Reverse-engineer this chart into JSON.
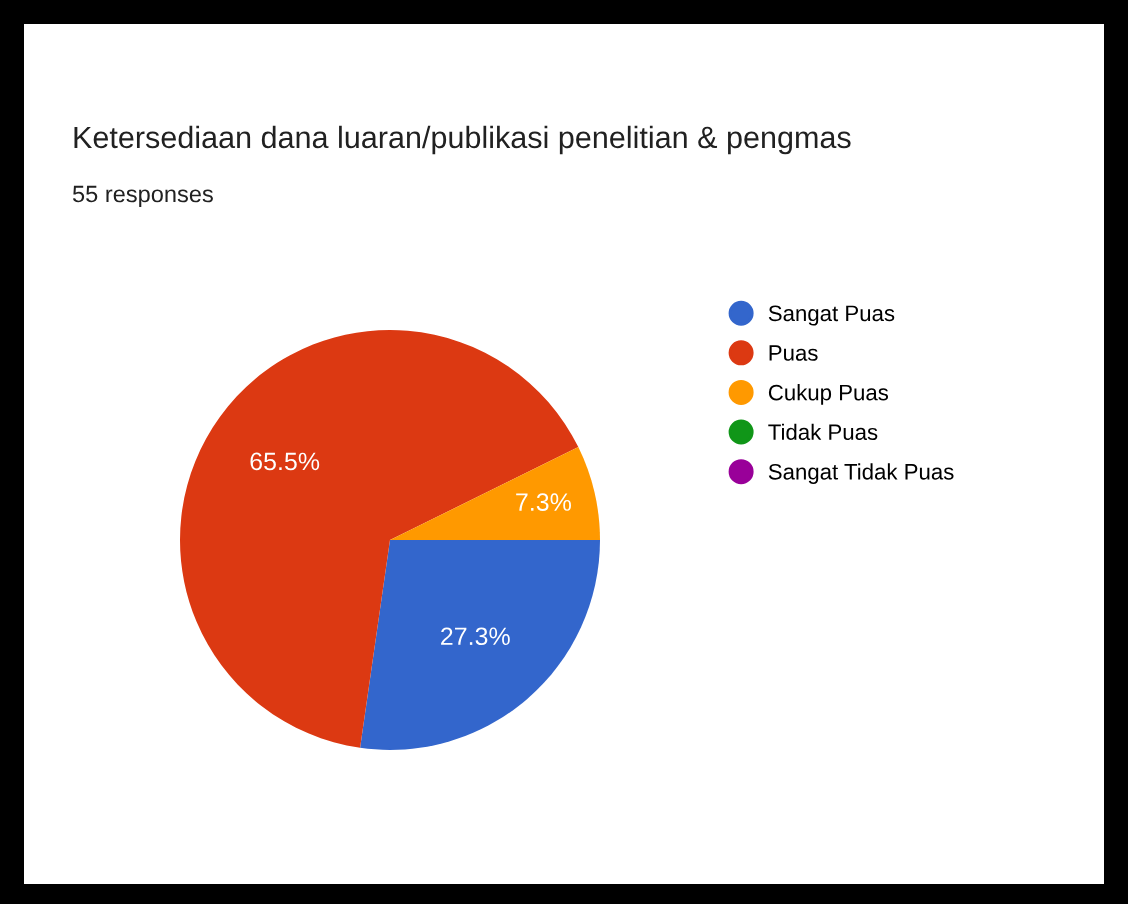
{
  "chart_data": {
    "type": "pie",
    "title": "Ketersediaan dana luaran/publikasi penelitian & pengmas",
    "subtitle": "55 responses",
    "categories": [
      "Sangat Puas",
      "Puas",
      "Cukup Puas",
      "Tidak Puas",
      "Sangat Tidak Puas"
    ],
    "values": [
      27.3,
      65.5,
      7.3,
      0,
      0
    ],
    "value_labels": [
      "27.3%",
      "65.5%",
      "7.3%",
      null,
      null
    ],
    "colors": [
      "#3366cc",
      "#dc3912",
      "#ff9900",
      "#109618",
      "#990099"
    ],
    "legend": "right"
  }
}
